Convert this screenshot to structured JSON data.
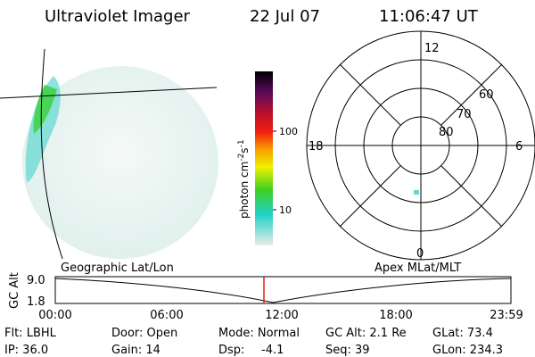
{
  "header": {
    "title": "Ultraviolet Imager",
    "date": "22 Jul 07",
    "time": "11:06:47 UT"
  },
  "colorbar": {
    "label": {
      "unit1": "photon cm",
      "exp1": "-2",
      "unit2": "s",
      "exp2": "-1"
    },
    "ticks": [
      "100",
      "10"
    ]
  },
  "polar": {
    "mlt_labels": [
      "12",
      "18",
      "6",
      "0"
    ],
    "lat_labels": [
      "60",
      "70",
      "80"
    ]
  },
  "timeline": {
    "left_title": "Geographic Lat/Lon",
    "right_title": "Apex MLat/MLT",
    "y_label": "GC Alt",
    "y_ticks": [
      "9.0",
      "1.8"
    ],
    "x_ticks": [
      "00:00",
      "06:00",
      "12:00",
      "18:00",
      "23:59"
    ]
  },
  "status": {
    "flt": "Flt: LBHL",
    "ip": "IP: 36.0",
    "door": "Door: Open",
    "gain": "Gain: 14",
    "mode": "Mode: Normal",
    "dsp_label": "Dsp:",
    "dsp_value": "-4.1",
    "gc_alt": "GC Alt: 2.1 Re",
    "seq": "Seq: 39",
    "glat": "GLat: 73.4",
    "glon": "GLon: 234.3"
  }
}
